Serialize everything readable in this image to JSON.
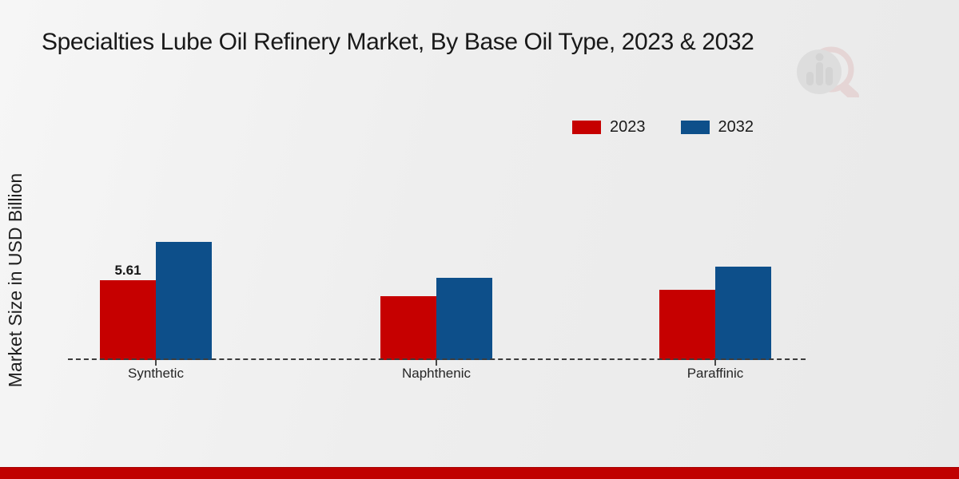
{
  "page": {
    "background_color": "#ededed",
    "footer_accent_color": "#c00000"
  },
  "chart_data": {
    "type": "bar",
    "title": "Specialties Lube Oil Refinery Market, By Base Oil Type, 2023 & 2032",
    "xlabel": "",
    "ylabel": "Market Size in USD Billion",
    "categories": [
      "Synthetic",
      "Naphthenic",
      "Paraffinic"
    ],
    "series": [
      {
        "name": "2023",
        "color": "#c60000",
        "values": [
          5.61,
          4.5,
          4.95
        ]
      },
      {
        "name": "2032",
        "color": "#0d4f8a",
        "values": [
          8.3,
          5.78,
          6.55
        ]
      }
    ],
    "bar_labels": [
      [
        "5.61",
        "",
        ""
      ],
      [
        "",
        "",
        ""
      ]
    ],
    "annotations": [
      {
        "text": "5.61",
        "series": "2023",
        "category": "Synthetic"
      }
    ],
    "legend_position": "top-right",
    "grid": false,
    "baseline_style": "dashed",
    "ylim": [
      0,
      9
    ],
    "value_unit": "USD Billion"
  },
  "watermark": {
    "icon": "magnifier-bar-chart-logo"
  }
}
